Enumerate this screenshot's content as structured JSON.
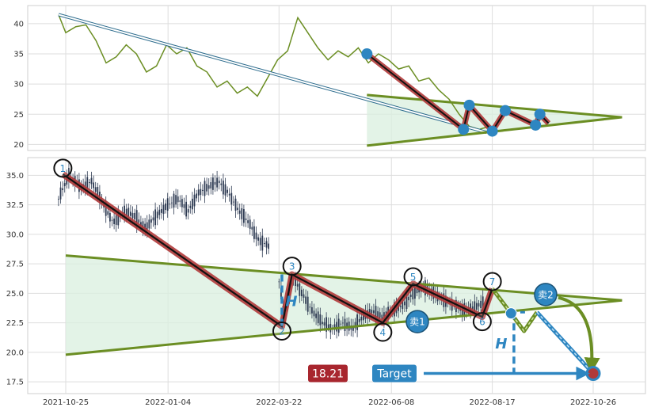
{
  "chart_data": [
    {
      "type": "line",
      "panel": "top",
      "ylim": [
        19,
        43
      ],
      "yticks": [
        20,
        25,
        30,
        35,
        40
      ],
      "grid": true,
      "series": [
        {
          "color": "#6b8e23",
          "points": [
            [
              "2021-10-20",
              41.5
            ],
            [
              "2021-10-25",
              38.5
            ],
            [
              "2021-11-01",
              39.5
            ],
            [
              "2021-11-08",
              39.8
            ],
            [
              "2021-11-15",
              37.2
            ],
            [
              "2021-11-22",
              33.5
            ],
            [
              "2021-11-29",
              34.5
            ],
            [
              "2021-12-06",
              36.5
            ],
            [
              "2021-12-13",
              35.0
            ],
            [
              "2021-12-20",
              32.0
            ],
            [
              "2021-12-27",
              33.0
            ],
            [
              "2022-01-03",
              36.5
            ],
            [
              "2022-01-10",
              35.0
            ],
            [
              "2022-01-17",
              36.0
            ],
            [
              "2022-01-24",
              33.0
            ],
            [
              "2022-01-31",
              32.0
            ],
            [
              "2022-02-07",
              29.5
            ],
            [
              "2022-02-14",
              30.5
            ],
            [
              "2022-02-21",
              28.5
            ],
            [
              "2022-02-28",
              29.5
            ],
            [
              "2022-03-07",
              28.0
            ],
            [
              "2022-03-14",
              31.0
            ],
            [
              "2022-03-21",
              34.0
            ],
            [
              "2022-03-28",
              35.5
            ],
            [
              "2022-04-04",
              41.0
            ],
            [
              "2022-04-11",
              38.5
            ],
            [
              "2022-04-18",
              36.0
            ],
            [
              "2022-04-25",
              34.0
            ],
            [
              "2022-05-02",
              35.5
            ],
            [
              "2022-05-09",
              34.5
            ],
            [
              "2022-05-16",
              36.0
            ],
            [
              "2022-05-23",
              33.5
            ],
            [
              "2022-05-30",
              35.0
            ],
            [
              "2022-06-06",
              34.0
            ],
            [
              "2022-06-13",
              32.5
            ],
            [
              "2022-06-20",
              33.0
            ],
            [
              "2022-06-27",
              30.5
            ],
            [
              "2022-07-04",
              31.0
            ],
            [
              "2022-07-11",
              29.0
            ],
            [
              "2022-07-18",
              27.5
            ],
            [
              "2022-07-25",
              25.0
            ],
            [
              "2022-08-01",
              23.0
            ],
            [
              "2022-08-08",
              22.5
            ],
            [
              "2022-08-15",
              23.0
            ]
          ]
        }
      ],
      "overlay": {
        "long_line": [
          [
            "2021-10-20",
            41.5
          ],
          [
            "2022-08-13",
            22.0
          ]
        ],
        "zigzag": [
          [
            "2022-05-22",
            35.0
          ],
          [
            "2022-07-28",
            22.5
          ],
          [
            "2022-08-01",
            26.5
          ],
          [
            "2022-08-17",
            22.2
          ],
          [
            "2022-08-26",
            25.6
          ],
          [
            "2022-09-16",
            23.2
          ],
          [
            "2022-09-19",
            25.0
          ],
          [
            "2022-09-25",
            23.5
          ]
        ],
        "markers": [
          [
            "2022-05-22",
            35.0
          ],
          [
            "2022-07-28",
            22.5
          ],
          [
            "2022-08-01",
            26.5
          ],
          [
            "2022-08-17",
            22.2
          ],
          [
            "2022-08-26",
            25.6
          ],
          [
            "2022-09-16",
            23.2
          ],
          [
            "2022-09-19",
            25.0
          ]
        ],
        "triangle_upper": [
          [
            "2022-05-22",
            28.2
          ],
          [
            "2022-11-15",
            24.5
          ]
        ],
        "triangle_lower": [
          [
            "2022-05-22",
            19.8
          ],
          [
            "2022-11-15",
            24.5
          ]
        ]
      }
    },
    {
      "type": "candlestick",
      "panel": "bottom",
      "ylim": [
        16.5,
        36.5
      ],
      "yticks": [
        17.5,
        20.0,
        22.5,
        25.0,
        27.5,
        30.0,
        32.5,
        35.0
      ],
      "xticks": [
        "2021-10-25",
        "2022-01-04",
        "2022-03-22",
        "2022-06-08",
        "2022-08-17",
        "2022-10-26"
      ],
      "grid": true,
      "price_segments": [
        [
          [
            "2021-10-20",
            33.0
          ],
          [
            "2021-10-27",
            35.0
          ],
          [
            "2021-11-05",
            34.0
          ],
          [
            "2021-11-12",
            34.5
          ],
          [
            "2021-11-20",
            32.5
          ],
          [
            "2021-11-27",
            31.0
          ],
          [
            "2021-12-05",
            32.0
          ],
          [
            "2021-12-12",
            31.5
          ],
          [
            "2021-12-19",
            30.5
          ],
          [
            "2021-12-26",
            31.5
          ],
          [
            "2022-01-04",
            32.5
          ],
          [
            "2022-01-11",
            33.0
          ],
          [
            "2022-01-18",
            32.0
          ],
          [
            "2022-01-25",
            33.5
          ],
          [
            "2022-02-01",
            34.0
          ],
          [
            "2022-02-08",
            34.5
          ],
          [
            "2022-02-15",
            33.5
          ],
          [
            "2022-02-22",
            32.0
          ],
          [
            "2022-03-01",
            31.0
          ],
          [
            "2022-03-08",
            29.5
          ],
          [
            "2022-03-15",
            29.0
          ]
        ],
        [
          [
            "2022-03-22",
            26.0
          ],
          [
            "2022-03-26",
            23.0
          ],
          [
            "2022-03-31",
            26.5
          ],
          [
            "2022-04-07",
            25.0
          ],
          [
            "2022-04-14",
            23.5
          ],
          [
            "2022-04-21",
            22.5
          ],
          [
            "2022-04-28",
            22.0
          ],
          [
            "2022-05-05",
            22.5
          ],
          [
            "2022-05-12",
            22.0
          ],
          [
            "2022-05-19",
            23.0
          ],
          [
            "2022-05-26",
            23.5
          ],
          [
            "2022-06-02",
            23.0
          ],
          [
            "2022-06-09",
            23.5
          ],
          [
            "2022-06-16",
            24.0
          ],
          [
            "2022-06-23",
            25.0
          ],
          [
            "2022-06-30",
            25.5
          ],
          [
            "2022-07-07",
            25.0
          ],
          [
            "2022-07-14",
            24.5
          ],
          [
            "2022-07-21",
            24.0
          ],
          [
            "2022-07-28",
            23.5
          ],
          [
            "2022-08-04",
            23.8
          ],
          [
            "2022-08-11",
            24.2
          ]
        ]
      ],
      "pattern_path": [
        [
          "2021-10-23",
          35.1
        ],
        [
          "2022-03-24",
          22.2
        ],
        [
          "2022-03-31",
          26.6
        ],
        [
          "2022-06-02",
          22.5
        ],
        [
          "2022-06-23",
          25.8
        ],
        [
          "2022-08-10",
          23.0
        ],
        [
          "2022-08-17",
          25.4
        ]
      ],
      "pivots": [
        {
          "label": "1",
          "date": "2021-10-23",
          "value": 35.6
        },
        {
          "label": "2",
          "date": "2022-03-24",
          "value": 21.8
        },
        {
          "label": "3",
          "date": "2022-03-31",
          "value": 27.3
        },
        {
          "label": "4",
          "date": "2022-06-02",
          "value": 21.7
        },
        {
          "label": "5",
          "date": "2022-06-23",
          "value": 26.4
        },
        {
          "label": "6",
          "date": "2022-08-10",
          "value": 22.6
        },
        {
          "label": "7",
          "date": "2022-08-17",
          "value": 26.0
        }
      ],
      "triangle_upper": [
        [
          "2021-10-25",
          28.2
        ],
        [
          "2022-11-15",
          24.4
        ]
      ],
      "triangle_lower": [
        [
          "2021-10-25",
          19.8
        ],
        [
          "2022-11-15",
          24.4
        ]
      ],
      "projection_path": [
        [
          "2022-08-17",
          25.4
        ],
        [
          "2022-08-30",
          23.3
        ],
        [
          "2022-09-08",
          21.8
        ],
        [
          "2022-09-17",
          23.4
        ],
        [
          "2022-10-26",
          18.2
        ]
      ],
      "buy_sell_badges": [
        {
          "label": "卖1",
          "date": "2022-06-26",
          "value": 22.6
        },
        {
          "label": "卖2",
          "date": "2022-09-23",
          "value": 24.9
        }
      ],
      "h_markers": [
        {
          "label": "H",
          "date": "2022-03-24",
          "top": 26.6,
          "bottom": 22.2
        },
        {
          "label": "H",
          "date": "2022-09-01",
          "top": 23.4,
          "bottom": 18.2
        }
      ],
      "target": {
        "label": "Target",
        "value_label": "18.21",
        "date": "2022-10-26",
        "value": 18.21
      }
    }
  ]
}
